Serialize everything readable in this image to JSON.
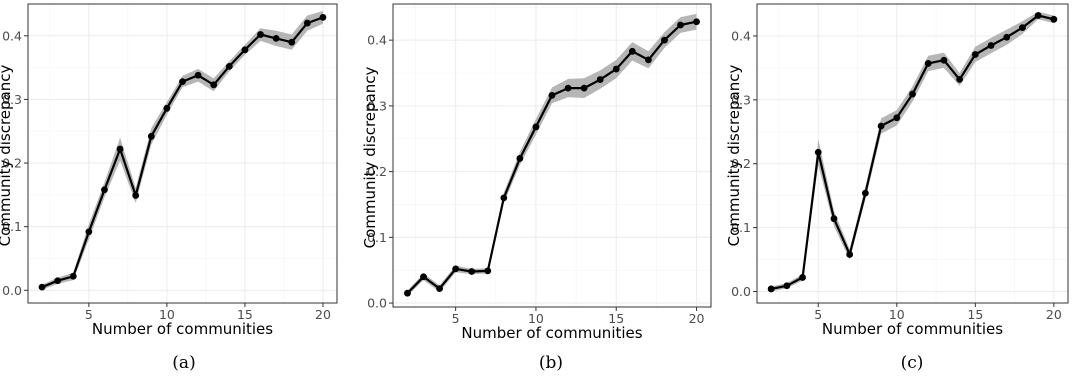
{
  "colors": {
    "line": "#000000",
    "ribbon": "#a9a9a9",
    "grid": "#ebebeb",
    "frame": "#333333"
  },
  "chart_data": [
    {
      "type": "line",
      "caption": "(a)",
      "xlabel": "Number of communities",
      "ylabel": "Community discrepancy",
      "xlim": [
        1.1,
        20.9
      ],
      "ylim": [
        -0.02,
        0.45
      ],
      "xticks": [
        "5",
        "10",
        "15",
        "20"
      ],
      "yticks": [
        "0.0",
        "0.1",
        "0.2",
        "0.3",
        "0.4"
      ],
      "grid": true,
      "x": [
        2,
        3,
        4,
        5,
        6,
        7,
        8,
        9,
        10,
        11,
        12,
        13,
        14,
        15,
        16,
        17,
        18,
        19,
        20
      ],
      "y": [
        0.005,
        0.015,
        0.022,
        0.092,
        0.158,
        0.222,
        0.149,
        0.242,
        0.286,
        0.328,
        0.338,
        0.323,
        0.352,
        0.378,
        0.402,
        0.396,
        0.39,
        0.42,
        0.429
      ],
      "band": [
        0.004,
        0.005,
        0.006,
        0.012,
        0.012,
        0.018,
        0.012,
        0.013,
        0.01,
        0.009,
        0.01,
        0.01,
        0.008,
        0.008,
        0.01,
        0.012,
        0.012,
        0.012,
        0.01
      ]
    },
    {
      "type": "line",
      "caption": "(b)",
      "xlabel": "Number of communities",
      "ylabel": "Community discrepancy",
      "xlim": [
        1.1,
        20.9
      ],
      "ylim": [
        -0.006,
        0.455
      ],
      "xticks": [
        "5",
        "10",
        "15",
        "20"
      ],
      "yticks": [
        "0.0",
        "0.1",
        "0.2",
        "0.3",
        "0.4"
      ],
      "grid": true,
      "x": [
        2,
        3,
        4,
        5,
        6,
        7,
        8,
        9,
        10,
        11,
        12,
        13,
        14,
        15,
        16,
        17,
        18,
        19,
        20
      ],
      "y": [
        0.015,
        0.04,
        0.022,
        0.052,
        0.048,
        0.049,
        0.16,
        0.22,
        0.268,
        0.316,
        0.327,
        0.327,
        0.34,
        0.356,
        0.383,
        0.37,
        0.4,
        0.423,
        0.428
      ],
      "band": [
        0.004,
        0.005,
        0.005,
        0.005,
        0.004,
        0.004,
        0.008,
        0.01,
        0.012,
        0.012,
        0.014,
        0.015,
        0.014,
        0.014,
        0.014,
        0.013,
        0.012,
        0.012,
        0.012
      ]
    },
    {
      "type": "line",
      "caption": "(c)",
      "xlabel": "Number of communities",
      "ylabel": "Community discrepancy",
      "xlim": [
        1.1,
        20.9
      ],
      "ylim": [
        -0.018,
        0.45
      ],
      "xticks": [
        "5",
        "10",
        "15",
        "20"
      ],
      "yticks": [
        "0.0",
        "0.1",
        "0.2",
        "0.3",
        "0.4"
      ],
      "grid": true,
      "x": [
        2,
        3,
        4,
        5,
        6,
        7,
        8,
        9,
        10,
        11,
        12,
        13,
        14,
        15,
        16,
        17,
        18,
        19,
        20
      ],
      "y": [
        0.004,
        0.009,
        0.022,
        0.218,
        0.114,
        0.058,
        0.154,
        0.259,
        0.272,
        0.309,
        0.357,
        0.362,
        0.332,
        0.371,
        0.385,
        0.398,
        0.413,
        0.432,
        0.426
      ],
      "band": [
        0.004,
        0.004,
        0.005,
        0.02,
        0.012,
        0.008,
        0.01,
        0.012,
        0.012,
        0.012,
        0.012,
        0.012,
        0.01,
        0.012,
        0.012,
        0.012,
        0.01,
        0.006,
        0.006
      ]
    }
  ]
}
